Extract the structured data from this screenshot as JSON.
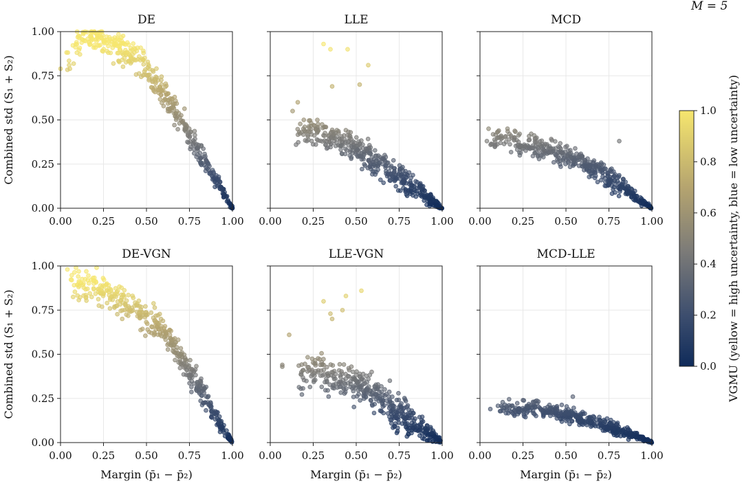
{
  "figure": {
    "badge": "M = 5",
    "colorbar": {
      "label": "VGMU (yellow = high uncertainty, blue = low uncertainty)",
      "ticks": [
        "0.0",
        "0.2",
        "0.4",
        "0.6",
        "0.8",
        "1.0"
      ],
      "colormap": "cividis",
      "color_low": "#0f2b5a",
      "color_mid": "#7c7b78",
      "color_high": "#f6e66e"
    },
    "shared_axes": {
      "xlabel": "Margin (p̄₁ − p̄₂)",
      "ylabel": "Combined std (S₁ + S₂)",
      "x_ticks": [
        "0.00",
        "0.25",
        "0.50",
        "0.75",
        "1.00"
      ],
      "y_ticks": [
        "0.00",
        "0.25",
        "0.50",
        "0.75",
        "1.00"
      ]
    }
  },
  "chart_data": [
    {
      "type": "scatter",
      "title": "DE",
      "xlim": [
        0,
        1
      ],
      "ylim": [
        0,
        1
      ],
      "description": "Points hug the upper-left plateau near std 0.8-1.0 for margin below 0.5, then fall steeply and linearly to (1, 0).",
      "anchors": [
        [
          0.03,
          0.8
        ],
        [
          0.1,
          0.95
        ],
        [
          0.2,
          0.97
        ],
        [
          0.3,
          0.93
        ],
        [
          0.45,
          0.85
        ],
        [
          0.55,
          0.72
        ],
        [
          0.65,
          0.58
        ],
        [
          0.75,
          0.42
        ],
        [
          0.85,
          0.25
        ],
        [
          0.93,
          0.12
        ],
        [
          1.0,
          0.0
        ]
      ],
      "outliers": [
        [
          0.0,
          0.79
        ],
        [
          0.05,
          0.81
        ]
      ],
      "spread": 0.08
    },
    {
      "type": "scatter",
      "title": "LLE",
      "xlim": [
        0,
        1
      ],
      "ylim": [
        0,
        1
      ],
      "description": "Sparse high points near margin 0.3-0.55, dense cloud around std 0.25-0.45 decaying to 0 at margin 1.",
      "anchors": [
        [
          0.15,
          0.45
        ],
        [
          0.25,
          0.42
        ],
        [
          0.35,
          0.4
        ],
        [
          0.45,
          0.36
        ],
        [
          0.55,
          0.3
        ],
        [
          0.65,
          0.24
        ],
        [
          0.75,
          0.18
        ],
        [
          0.85,
          0.11
        ],
        [
          0.93,
          0.05
        ],
        [
          1.0,
          0.0
        ]
      ],
      "outliers": [
        [
          0.31,
          0.93
        ],
        [
          0.35,
          0.9
        ],
        [
          0.45,
          0.9
        ],
        [
          0.57,
          0.81
        ],
        [
          0.52,
          0.7
        ],
        [
          0.36,
          0.69
        ],
        [
          0.13,
          0.55
        ],
        [
          0.16,
          0.6
        ],
        [
          0.15,
          0.36
        ]
      ],
      "spread": 0.08
    },
    {
      "type": "scatter",
      "title": "MCD",
      "xlim": [
        0,
        1
      ],
      "ylim": [
        0,
        1
      ],
      "description": "Broad band from std ~0.4 at small margin, decreasing roughly linearly to 0 at margin 1.",
      "anchors": [
        [
          0.05,
          0.4
        ],
        [
          0.2,
          0.38
        ],
        [
          0.35,
          0.34
        ],
        [
          0.5,
          0.3
        ],
        [
          0.6,
          0.26
        ],
        [
          0.7,
          0.2
        ],
        [
          0.8,
          0.14
        ],
        [
          0.9,
          0.07
        ],
        [
          1.0,
          0.0
        ]
      ],
      "outliers": [
        [
          0.05,
          0.45
        ],
        [
          0.04,
          0.38
        ],
        [
          0.09,
          0.36
        ],
        [
          0.1,
          0.43
        ],
        [
          0.16,
          0.45
        ],
        [
          0.81,
          0.38
        ]
      ],
      "spread": 0.06
    },
    {
      "type": "scatter",
      "title": "DE-VGN",
      "xlim": [
        0,
        1
      ],
      "ylim": [
        0,
        1
      ],
      "description": "Similar to DE: high plateau 0.75-1.0 for small margins, steep linear decline to (1, 0).",
      "anchors": [
        [
          0.05,
          0.9
        ],
        [
          0.15,
          0.88
        ],
        [
          0.25,
          0.85
        ],
        [
          0.35,
          0.8
        ],
        [
          0.45,
          0.74
        ],
        [
          0.55,
          0.68
        ],
        [
          0.65,
          0.57
        ],
        [
          0.75,
          0.4
        ],
        [
          0.85,
          0.24
        ],
        [
          0.93,
          0.1
        ],
        [
          1.0,
          0.0
        ]
      ],
      "outliers": [
        [
          0.04,
          0.98
        ],
        [
          0.09,
          0.99
        ],
        [
          0.21,
          0.99
        ]
      ],
      "spread": 0.08
    },
    {
      "type": "scatter",
      "title": "LLE-VGN",
      "xlim": [
        0,
        1
      ],
      "ylim": [
        0,
        1
      ],
      "description": "Wide scatter with some high-std points up to ~0.85, main band from ~0.45 decreasing to 0 at margin 1.",
      "anchors": [
        [
          0.15,
          0.4
        ],
        [
          0.25,
          0.4
        ],
        [
          0.35,
          0.38
        ],
        [
          0.45,
          0.34
        ],
        [
          0.55,
          0.3
        ],
        [
          0.65,
          0.24
        ],
        [
          0.75,
          0.17
        ],
        [
          0.85,
          0.1
        ],
        [
          0.93,
          0.05
        ],
        [
          1.0,
          0.0
        ]
      ],
      "outliers": [
        [
          0.42,
          0.75
        ],
        [
          0.36,
          0.7
        ],
        [
          0.35,
          0.73
        ],
        [
          0.31,
          0.8
        ],
        [
          0.53,
          0.86
        ],
        [
          0.44,
          0.83
        ],
        [
          0.11,
          0.61
        ],
        [
          0.07,
          0.44
        ],
        [
          0.07,
          0.43
        ]
      ],
      "spread": 0.1
    },
    {
      "type": "scatter",
      "title": "MCD-LLE",
      "xlim": [
        0,
        1
      ],
      "ylim": [
        0,
        1
      ],
      "description": "Low, tight band: std ~0.2 across margins 0.1-0.6 tapering to 0 at margin 1.",
      "anchors": [
        [
          0.1,
          0.2
        ],
        [
          0.25,
          0.19
        ],
        [
          0.35,
          0.19
        ],
        [
          0.45,
          0.17
        ],
        [
          0.55,
          0.15
        ],
        [
          0.65,
          0.12
        ],
        [
          0.75,
          0.09
        ],
        [
          0.85,
          0.06
        ],
        [
          0.93,
          0.03
        ],
        [
          1.0,
          0.0
        ]
      ],
      "outliers": [
        [
          0.06,
          0.19
        ],
        [
          0.13,
          0.2
        ],
        [
          0.25,
          0.24
        ],
        [
          0.54,
          0.26
        ]
      ],
      "spread": 0.04
    }
  ]
}
